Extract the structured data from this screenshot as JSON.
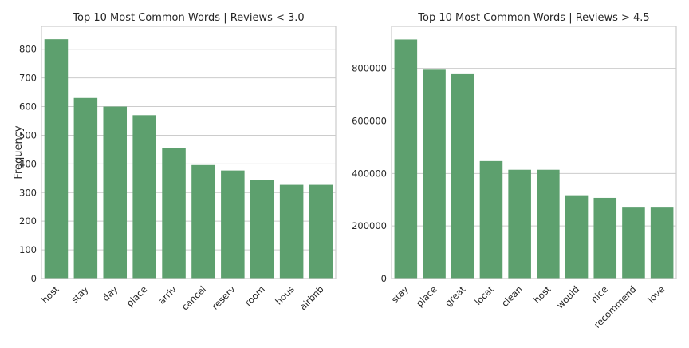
{
  "chart_data": [
    {
      "type": "bar",
      "title": "Top 10 Most Common Words | Reviews < 3.0",
      "xlabel": "",
      "ylabel": "Frequency",
      "categories": [
        "host",
        "stay",
        "day",
        "place",
        "arriv",
        "cancel",
        "reserv",
        "room",
        "hous",
        "airbnb"
      ],
      "values": [
        835,
        630,
        600,
        570,
        455,
        396,
        377,
        343,
        327,
        327
      ],
      "ylim": [
        0,
        880
      ],
      "yticks": [
        0,
        100,
        200,
        300,
        400,
        500,
        600,
        700,
        800
      ],
      "ytick_labels": [
        "0",
        "100",
        "200",
        "300",
        "400",
        "500",
        "600",
        "700",
        "800"
      ],
      "grid": true,
      "bar_color": "#5da06e"
    },
    {
      "type": "bar",
      "title": "Top 10 Most Common Words | Reviews > 4.5",
      "xlabel": "",
      "ylabel": "",
      "categories": [
        "stay",
        "place",
        "great",
        "locat",
        "clean",
        "host",
        "would",
        "nice",
        "recommend",
        "love"
      ],
      "values": [
        910000,
        795000,
        778000,
        447000,
        414000,
        414000,
        317000,
        307000,
        273000,
        273000
      ],
      "ylim": [
        0,
        960000
      ],
      "yticks": [
        0,
        200000,
        400000,
        600000,
        800000
      ],
      "ytick_labels": [
        "0",
        "200000",
        "400000",
        "600000",
        "800000"
      ],
      "grid": true,
      "bar_color": "#5da06e"
    }
  ]
}
